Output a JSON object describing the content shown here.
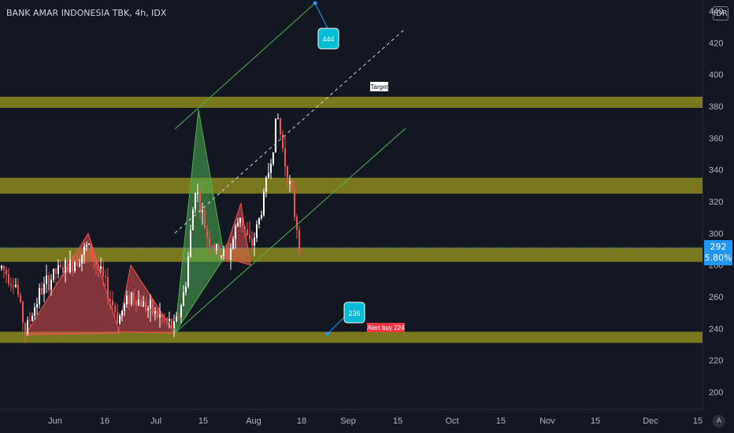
{
  "header": {
    "title": "BANK AMAR INDONESIA TBK, 4h, IDX",
    "currency": "IDR"
  },
  "chart_data": {
    "type": "candlestick",
    "yaxis_ticks": [
      200,
      220,
      240,
      260,
      280,
      300,
      320,
      340,
      360,
      380,
      400,
      420,
      440
    ],
    "xaxis_ticks": [
      "Jun",
      "16",
      "Jul",
      "15",
      "Aug",
      "18",
      "Sep",
      "15",
      "Oct",
      "15",
      "Nov",
      "15",
      "Dec",
      "15"
    ],
    "ylim": [
      187,
      449
    ],
    "last_price": 292,
    "last_change": "5.80%",
    "support_resistance_zones": [
      {
        "price_low": 379,
        "price_high": 386
      },
      {
        "price_low": 325,
        "price_high": 335
      },
      {
        "price_low": 282,
        "price_high": 291
      },
      {
        "price_low": 231,
        "price_high": 238
      }
    ],
    "annotations": [
      {
        "text": "444",
        "price": 444
      },
      {
        "text": "236",
        "price": 236
      },
      {
        "text": "Target",
        "price": 386
      },
      {
        "text": "Alert buy 224",
        "price": 238
      }
    ],
    "patterns": [
      {
        "type": "triangle",
        "color": "red",
        "points": [
          [
            236,
            0
          ],
          [
            300,
            0
          ],
          [
            237,
            0
          ]
        ]
      },
      {
        "type": "triangle",
        "color": "red",
        "points": [
          [
            238,
            0
          ],
          [
            280,
            0
          ],
          [
            237,
            0
          ]
        ]
      },
      {
        "type": "triangle",
        "color": "green",
        "points": [
          [
            237,
            0
          ],
          [
            378,
            0
          ],
          [
            285,
            0
          ]
        ]
      },
      {
        "type": "triangle",
        "color": "red",
        "points": [
          [
            285,
            0
          ],
          [
            319,
            0
          ],
          [
            280,
            0
          ]
        ]
      }
    ],
    "grid": false
  },
  "ui": {
    "auto_label": "A"
  }
}
